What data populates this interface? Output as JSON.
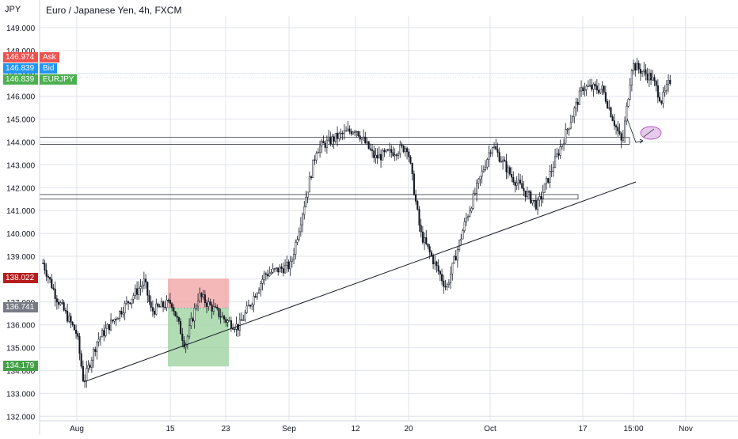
{
  "header": {
    "title": "Euro / Japanese Yen, 4h, FXCM",
    "currency": "JPY"
  },
  "price_badges": [
    {
      "value": "146.974",
      "label": "Ask",
      "color": "#ef5350",
      "price": 146.974
    },
    {
      "value": "146.839",
      "label": "Bid",
      "color": "#2196f3",
      "price": 146.839
    },
    {
      "value": "146.839",
      "label": "EURJPY",
      "color": "#4caf50",
      "price": 146.839
    }
  ],
  "position_badges": [
    {
      "value": "138.022",
      "color": "#b71c1c",
      "price": 138.022
    },
    {
      "value": "136.741",
      "color": "#787b86",
      "price": 136.741
    },
    {
      "value": "134.179",
      "color": "#43a047",
      "price": 134.179
    }
  ],
  "colors": {
    "candle": "#131722",
    "grid": "#e0e3eb",
    "trendline": "#131722",
    "stop_zone": "#ef9a9a",
    "target_zone": "#a5d6a7",
    "ellipse": "#e1bee7"
  },
  "chart_data": {
    "type": "candlestick",
    "title": "Euro / Japanese Yen, 4h, FXCM",
    "ylabel": "JPY",
    "ylim": [
      132.0,
      149.8
    ],
    "y_ticks": [
      "132.000",
      "133.000",
      "134.000",
      "135.000",
      "136.000",
      "137.000",
      "138.000",
      "139.000",
      "140.000",
      "141.000",
      "142.000",
      "143.000",
      "144.000",
      "145.000",
      "146.000",
      "147.000",
      "148.000",
      "149.000"
    ],
    "x_ticks": [
      "Aug",
      "15",
      "23",
      "Sep",
      "12",
      "20",
      "Oct",
      "17",
      "15:00",
      "Nov"
    ],
    "last_price": 146.839,
    "price_path": [
      {
        "date": "Jul 27",
        "close": 138.7
      },
      {
        "date": "Jul 29",
        "close": 137.2
      },
      {
        "date": "Aug 1",
        "close": 135.6
      },
      {
        "date": "Aug 2",
        "close": 133.5
      },
      {
        "date": "Aug 4",
        "close": 135.3
      },
      {
        "date": "Aug 8",
        "close": 136.8
      },
      {
        "date": "Aug 11",
        "close": 137.9
      },
      {
        "date": "Aug 12",
        "close": 136.6
      },
      {
        "date": "Aug 15",
        "close": 137.0
      },
      {
        "date": "Aug 17",
        "close": 135.1
      },
      {
        "date": "Aug 19",
        "close": 137.3
      },
      {
        "date": "Aug 23",
        "close": 136.2
      },
      {
        "date": "Aug 25",
        "close": 135.9
      },
      {
        "date": "Aug 29",
        "close": 138.2
      },
      {
        "date": "Sep 2",
        "close": 138.6
      },
      {
        "date": "Sep 6",
        "close": 143.7
      },
      {
        "date": "Sep 9",
        "close": 144.2
      },
      {
        "date": "Sep 12",
        "close": 144.6
      },
      {
        "date": "Sep 15",
        "close": 143.3
      },
      {
        "date": "Sep 20",
        "close": 143.8
      },
      {
        "date": "Sep 22",
        "close": 140.0
      },
      {
        "date": "Sep 26",
        "close": 137.6
      },
      {
        "date": "Sep 29",
        "close": 140.6
      },
      {
        "date": "Oct 3",
        "close": 143.9
      },
      {
        "date": "Oct 6",
        "close": 142.5
      },
      {
        "date": "Oct 10",
        "close": 141.2
      },
      {
        "date": "Oct 14",
        "close": 144.1
      },
      {
        "date": "Oct 17",
        "close": 146.4
      },
      {
        "date": "Oct 19",
        "close": 146.3
      },
      {
        "date": "Oct 21",
        "close": 143.9
      },
      {
        "date": "Oct 22",
        "close": 147.4
      },
      {
        "date": "Oct 24",
        "close": 146.8
      },
      {
        "date": "Oct 25",
        "close": 145.8
      },
      {
        "date": "Oct 26",
        "close": 146.839
      }
    ],
    "support_zones": [
      {
        "from": 143.9,
        "to": 144.2
      },
      {
        "from": 141.5,
        "to": 141.7
      }
    ],
    "trendline": [
      {
        "date": "Aug 2",
        "price": 133.5
      },
      {
        "date": "Oct 21",
        "price": 142.3
      }
    ],
    "position": {
      "entry": 136.741,
      "stop": 138.022,
      "target": 134.179
    }
  }
}
